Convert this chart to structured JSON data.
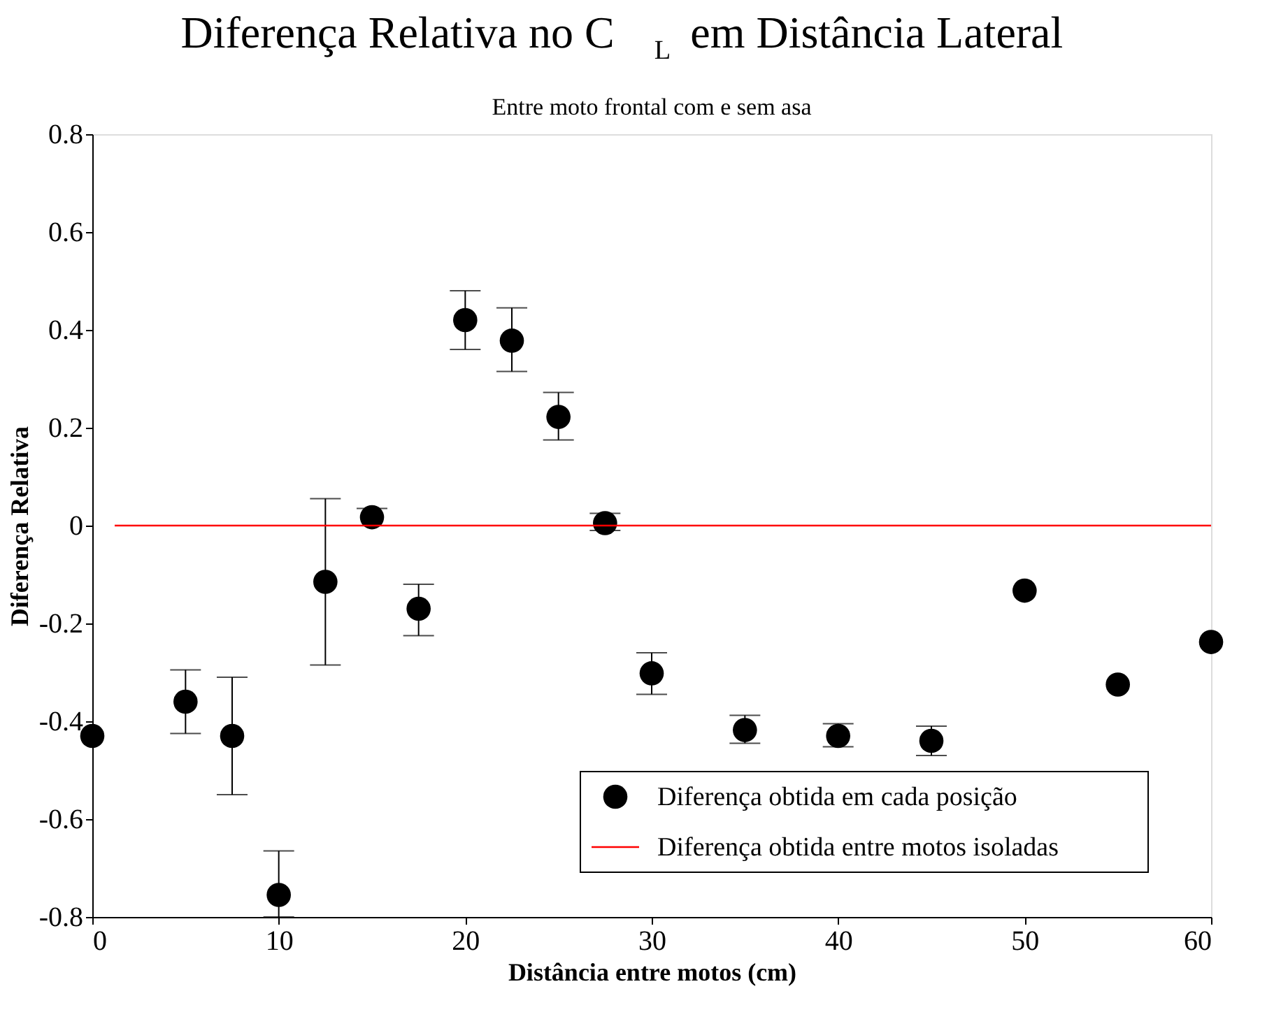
{
  "chart_data": {
    "type": "scatter",
    "title": "Diferença Relativa no C$_{L}$ em Distância Lateral",
    "subtitle": "Entre moto frontal com e sem asa",
    "xlabel": "Distância entre motos (cm)",
    "ylabel": "Diferença Relativa",
    "xlim": [
      0,
      60
    ],
    "xticks": [
      0,
      10,
      20,
      30,
      40,
      50,
      60
    ],
    "ylim": [
      -0.8,
      0.8
    ],
    "yticks": [
      -0.8,
      -0.6,
      -0.4,
      -0.2,
      0,
      0.2,
      0.4,
      0.6,
      0.8
    ],
    "grid": false,
    "legend": "bottom right",
    "series": [
      {
        "name": "Diferença obtida em cada posição",
        "marker": "circle",
        "color": "#000000",
        "x": [
          0,
          5,
          7.5,
          10,
          12.5,
          15,
          17.5,
          20,
          22.5,
          25,
          27.5,
          30,
          35,
          40,
          45,
          50,
          55,
          60
        ],
        "values": [
          -0.43,
          -0.36,
          -0.43,
          -0.755,
          -0.115,
          0.017,
          -0.17,
          0.42,
          0.378,
          0.222,
          0.005,
          -0.302,
          -0.418,
          -0.43,
          -0.44,
          -0.133,
          -0.325,
          -0.238
        ],
        "errors": [
          null,
          [
            -0.425,
            -0.295
          ],
          [
            -0.55,
            -0.31
          ],
          [
            -0.8,
            -0.665
          ],
          [
            -0.285,
            0.055
          ],
          [
            0.0,
            0.035
          ],
          [
            -0.225,
            -0.12
          ],
          [
            0.36,
            0.48
          ],
          [
            0.315,
            0.445
          ],
          [
            0.175,
            0.272
          ],
          [
            -0.01,
            0.025
          ],
          [
            -0.345,
            -0.26
          ],
          [
            -0.445,
            -0.388
          ],
          [
            -0.452,
            -0.405
          ],
          [
            -0.47,
            -0.41
          ],
          null,
          null,
          null
        ]
      },
      {
        "name": "Diferença obtida entre motos isoladas",
        "type": "line",
        "marker": "none",
        "line_style": "solid",
        "color": "#ff0000",
        "x": [
          1.2,
          60
        ],
        "values": [
          0,
          0
        ]
      }
    ]
  }
}
